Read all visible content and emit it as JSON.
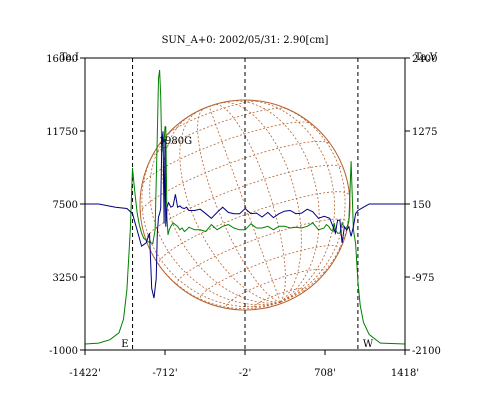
{
  "chart_data": {
    "type": "line",
    "title": "SUN_A+0: 2002/05/31: 2.90[cm]",
    "y_left_label": "Ta,I",
    "y_right_label": "Ta,V",
    "x_ticks": [
      "-1422'",
      "-712'",
      "-2'",
      "708'",
      "1418'"
    ],
    "y_left_ticks": [
      "16000",
      "11750",
      "7500",
      "3250",
      "-1000"
    ],
    "y_right_ticks": [
      "2400",
      "1275",
      "150",
      "-975",
      "-2100"
    ],
    "xlim": [
      -1422,
      1418
    ],
    "ylim_left": [
      -1000,
      16000
    ],
    "ylim_right": [
      -2100,
      2400
    ],
    "limb_markers": [
      {
        "x": -1000,
        "label": "E"
      },
      {
        "x": -2,
        "label": ""
      },
      {
        "x": 1000,
        "label": "W"
      }
    ],
    "annotation": {
      "text": "1980G",
      "x": -620,
      "y": 11000
    },
    "colors": {
      "stokes_i": "#008000",
      "stokes_v": "#000080",
      "solar_disk": "#b8622e",
      "limb": "#000000"
    },
    "series": [
      {
        "axis": "left",
        "x": [
          -1422,
          -1300,
          -1200,
          -1120,
          -1080,
          -1050,
          -1020,
          -1000,
          -980,
          -960,
          -940,
          -920,
          -900,
          -880,
          -860,
          -840,
          -820,
          -800,
          -780,
          -770,
          -760,
          -750,
          -740,
          -730,
          -720,
          -712,
          -705,
          -695,
          -685,
          -675,
          -660,
          -640,
          -620,
          -600,
          -580,
          -560,
          -540,
          -520,
          -500,
          -450,
          -400,
          -350,
          -300,
          -250,
          -200,
          -150,
          -100,
          -50,
          0,
          50,
          100,
          150,
          200,
          250,
          300,
          350,
          400,
          450,
          500,
          550,
          600,
          650,
          700,
          720,
          740,
          760,
          780,
          790,
          800,
          820,
          840,
          860,
          880,
          900,
          920,
          940,
          960,
          980,
          1000,
          1020,
          1050,
          1100,
          1200,
          1418
        ],
        "values": [
          -650,
          -600,
          -400,
          0,
          800,
          2500,
          6000,
          9600,
          8200,
          7000,
          6300,
          5800,
          5500,
          5400,
          5300,
          5250,
          5200,
          6000,
          11500,
          14800,
          15300,
          13800,
          10500,
          11300,
          11100,
          12000,
          12000,
          6800,
          5700,
          6000,
          6200,
          6400,
          6300,
          6200,
          6000,
          6100,
          5900,
          6000,
          6150,
          6000,
          6000,
          5900,
          6300,
          6000,
          6200,
          6300,
          6100,
          6000,
          6000,
          6350,
          6100,
          6100,
          6200,
          6000,
          6200,
          6200,
          6100,
          6150,
          6100,
          6200,
          6400,
          6000,
          6100,
          6300,
          6200,
          6000,
          5900,
          6400,
          6000,
          5800,
          5800,
          6400,
          6100,
          6100,
          6500,
          10000,
          6000,
          5200,
          3000,
          1600,
          600,
          -100,
          -600,
          -650
        ]
      },
      {
        "axis": "right",
        "x": [
          -1422,
          -1300,
          -1150,
          -1050,
          -1000,
          -960,
          -920,
          -880,
          -850,
          -830,
          -810,
          -790,
          -780,
          -770,
          -760,
          -750,
          -740,
          -730,
          -720,
          -712,
          -705,
          -695,
          -680,
          -660,
          -640,
          -620,
          -600,
          -580,
          -560,
          -540,
          -520,
          -500,
          -450,
          -400,
          -350,
          -300,
          -250,
          -200,
          -150,
          -100,
          -50,
          0,
          50,
          100,
          150,
          200,
          250,
          300,
          350,
          400,
          450,
          500,
          550,
          600,
          650,
          700,
          750,
          780,
          800,
          820,
          840,
          860,
          880,
          900,
          920,
          940,
          960,
          980,
          1000,
          1050,
          1100,
          1200,
          1418
        ],
        "values": [
          150,
          150,
          100,
          80,
          0,
          -250,
          -500,
          -450,
          -300,
          -1150,
          -1300,
          -1000,
          -300,
          -50,
          0,
          80,
          1100,
          1270,
          -150,
          1150,
          -200,
          100,
          170,
          100,
          120,
          300,
          100,
          120,
          90,
          80,
          100,
          50,
          50,
          70,
          0,
          -70,
          20,
          100,
          20,
          0,
          0,
          80,
          0,
          10,
          -50,
          20,
          -60,
          0,
          40,
          50,
          0,
          10,
          70,
          30,
          -70,
          -40,
          -70,
          -200,
          -300,
          -100,
          -100,
          -450,
          -200,
          -250,
          -200,
          -350,
          -200,
          0,
          50,
          100,
          150,
          150,
          150
        ]
      }
    ]
  }
}
